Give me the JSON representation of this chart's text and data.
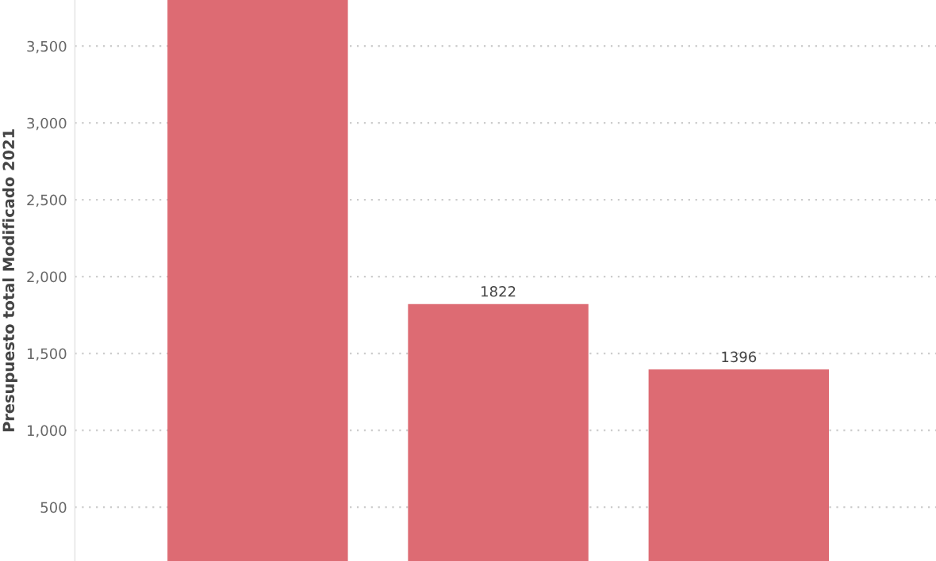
{
  "chart_data": {
    "type": "bar",
    "ylabel": "Presupuesto total Modificado 2021",
    "categories": [
      null,
      null,
      null
    ],
    "values": [
      3800,
      1822,
      1396
    ],
    "value_labels": [
      null,
      "1822",
      "1396"
    ],
    "color": "#dd6b73",
    "ylim": [
      150,
      3800
    ],
    "yticks": [
      {
        "value": 500,
        "label": "500"
      },
      {
        "value": 1000,
        "label": "1,000"
      },
      {
        "value": 1500,
        "label": "1,500"
      },
      {
        "value": 2000,
        "label": "2,000"
      },
      {
        "value": 2500,
        "label": "2,500"
      },
      {
        "value": 3000,
        "label": "3,000"
      },
      {
        "value": 3500,
        "label": "3,500"
      }
    ],
    "grid": "y"
  }
}
